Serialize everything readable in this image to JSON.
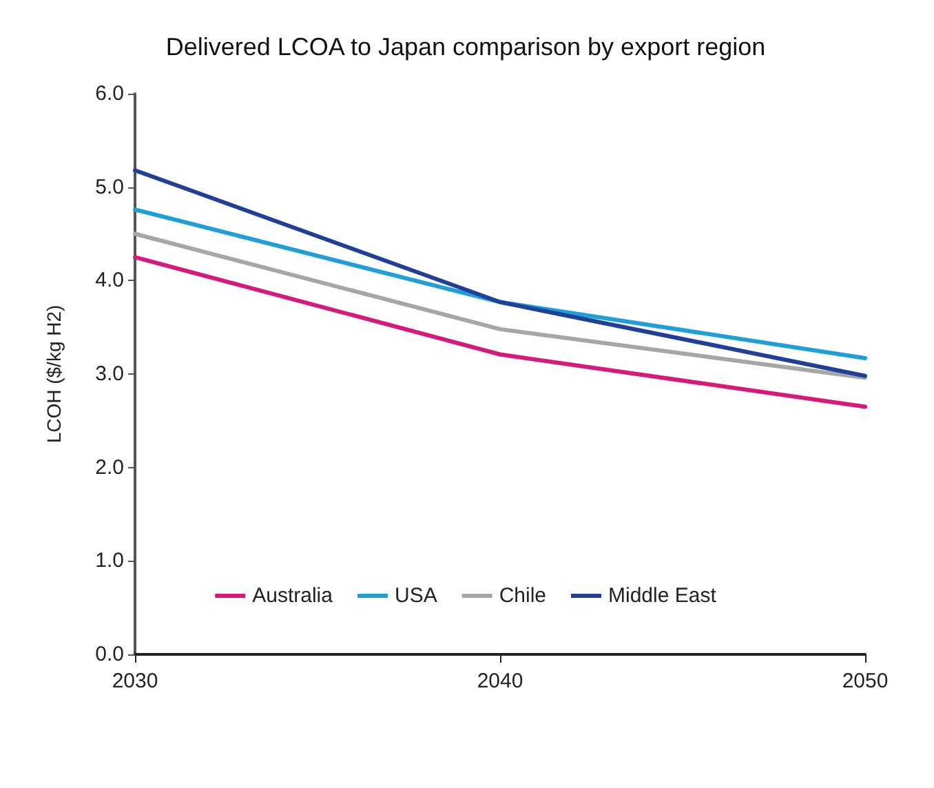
{
  "chart_data": {
    "type": "line",
    "title": "Delivered LCOA to Japan comparison by export region",
    "ylabel": "LCOH ($/kg H2)",
    "x": [
      2030,
      2040,
      2050
    ],
    "xlim": [
      2030,
      2050
    ],
    "xticks": [
      2030,
      2040,
      2050
    ],
    "ylim": [
      0,
      6
    ],
    "yticks": [
      {
        "value": 0,
        "label": "0.0"
      },
      {
        "value": 1,
        "label": "1.0"
      },
      {
        "value": 2,
        "label": "2.0"
      },
      {
        "value": 3,
        "label": "3.0"
      },
      {
        "value": 4,
        "label": "4.0"
      },
      {
        "value": 5,
        "label": "5.0"
      },
      {
        "value": 6,
        "label": "6.0"
      }
    ],
    "series": [
      {
        "name": "Australia",
        "color": "#d6197a",
        "values": [
          4.25,
          3.21,
          2.65
        ]
      },
      {
        "name": "USA",
        "color": "#1e9fd8",
        "values": [
          4.76,
          3.77,
          3.17
        ]
      },
      {
        "name": "Chile",
        "color": "#a6a6a6",
        "values": [
          4.5,
          3.48,
          2.96
        ]
      },
      {
        "name": "Middle East",
        "color": "#1f3f99",
        "values": [
          5.18,
          3.77,
          2.98
        ]
      }
    ],
    "grid": false,
    "legend": "bottom",
    "marker": "none",
    "line_style": "solid"
  }
}
